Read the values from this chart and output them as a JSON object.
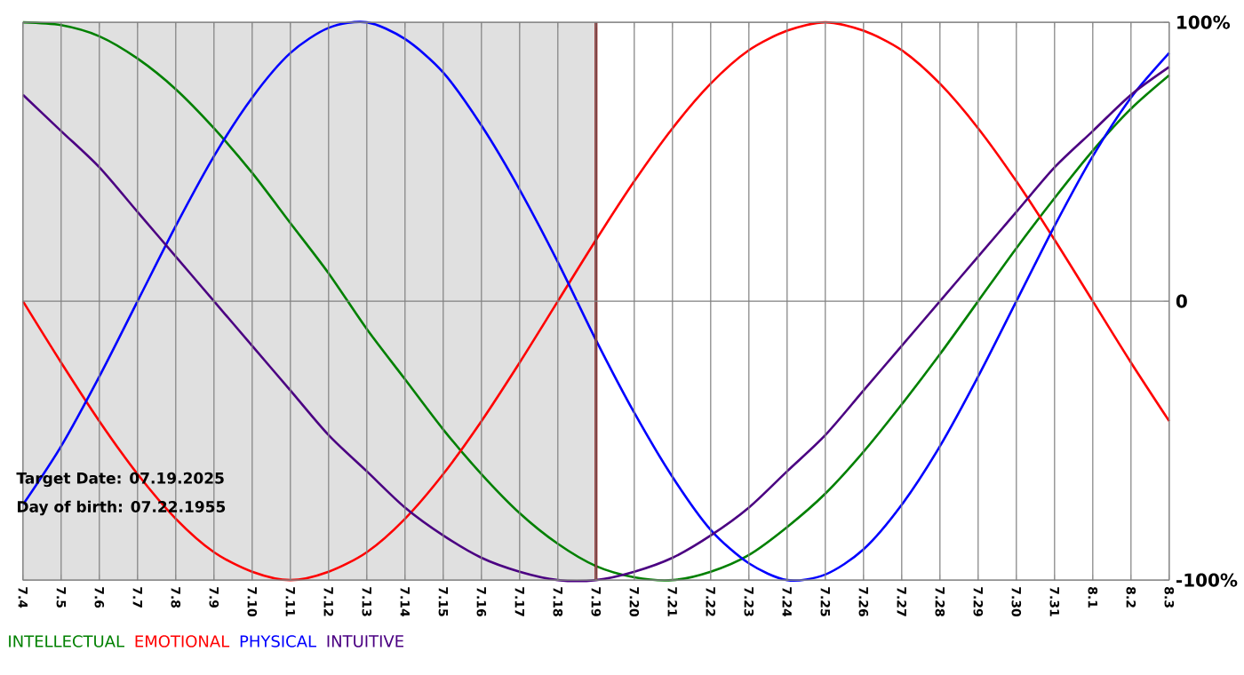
{
  "chart_data": {
    "type": "line",
    "categories": [
      "7.4",
      "7.5",
      "7.6",
      "7.7",
      "7.8",
      "7.9",
      "7.10",
      "7.11",
      "7.12",
      "7.13",
      "7.14",
      "7.15",
      "7.16",
      "7.17",
      "7.18",
      "7.19",
      "7.20",
      "7.21",
      "7.22",
      "7.23",
      "7.24",
      "7.25",
      "7.26",
      "7.27",
      "7.28",
      "7.29",
      "7.30",
      "7.31",
      "8.1",
      "8.2",
      "8.3"
    ],
    "series": [
      {
        "name": "INTELLECTUAL",
        "color": "#008000",
        "values": [
          100,
          99,
          95,
          87,
          76,
          62,
          46,
          28,
          10,
          -10,
          -28,
          -46,
          -62,
          -76,
          -87,
          -95,
          -99,
          -100,
          -97,
          -91,
          -81,
          -69,
          -54,
          -37,
          -19,
          0,
          19,
          37,
          54,
          69,
          81
        ]
      },
      {
        "name": "EMOTIONAL",
        "color": "#ff0000",
        "values": [
          0,
          -22,
          -43,
          -62,
          -78,
          -90,
          -97,
          -100,
          -97,
          -90,
          -78,
          -62,
          -43,
          -22,
          0,
          22,
          43,
          62,
          78,
          90,
          97,
          100,
          97,
          90,
          78,
          62,
          43,
          22,
          0,
          -22,
          -43
        ]
      },
      {
        "name": "PHYSICAL",
        "color": "#0000ff",
        "values": [
          -73,
          -52,
          -27,
          0,
          27,
          52,
          73,
          89,
          98,
          100,
          94,
          82,
          63,
          40,
          14,
          -14,
          -40,
          -63,
          -82,
          -94,
          -100,
          -98,
          -89,
          -73,
          -52,
          -27,
          0,
          27,
          52,
          73,
          89
        ]
      },
      {
        "name": "INTUITIVE",
        "color": "#4b0082",
        "values": [
          74,
          61,
          48,
          32,
          16,
          0,
          -16,
          -32,
          -48,
          -61,
          -74,
          -84,
          -92,
          -97,
          -100,
          -100,
          -97,
          -92,
          -84,
          -74,
          -61,
          -48,
          -32,
          -16,
          0,
          16,
          32,
          48,
          61,
          74,
          84
        ]
      }
    ],
    "ylim": [
      -100,
      100
    ],
    "yticks": [
      {
        "value": -100,
        "label": "-100%"
      },
      0,
      {
        "value": 100,
        "label": "100%"
      }
    ],
    "grid": true,
    "legend": "bottom",
    "marker": "none",
    "line_style": "solid",
    "ref_lines": [
      {
        "axis": "x",
        "value": "7.19",
        "color": "#800000"
      }
    ],
    "bands": [
      {
        "axis": "x",
        "from": "7.4",
        "to": "7.19",
        "color": "#e0e0e0"
      }
    ],
    "annotations": [
      "Target Date: 07.19.2025",
      "Day of birth: 07.22.1955"
    ]
  }
}
